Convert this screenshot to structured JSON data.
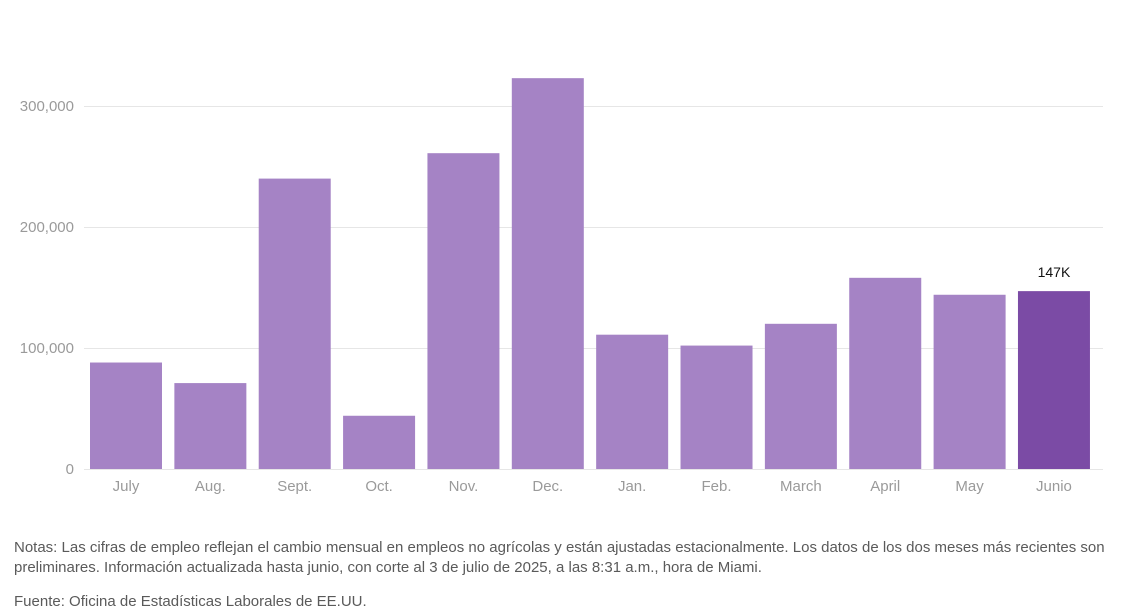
{
  "chart_data": {
    "type": "bar",
    "categories": [
      "July",
      "Aug.",
      "Sept.",
      "Oct.",
      "Nov.",
      "Dec.",
      "Jan.",
      "Feb.",
      "March",
      "April",
      "May",
      "Junio"
    ],
    "values": [
      88000,
      71000,
      240000,
      44000,
      261000,
      323000,
      111000,
      102000,
      120000,
      158000,
      144000,
      147000
    ],
    "yticks": [
      0,
      100000,
      200000,
      300000
    ],
    "ytick_labels": [
      "0",
      "100,000",
      "200,000",
      "300,000"
    ],
    "ylim": [
      0,
      330000
    ],
    "grid": true,
    "highlight_index": 11,
    "highlight_label": "147K",
    "colors": {
      "bar": "#a583c5",
      "highlight": "#7b4ba5",
      "grid": "#e6e6e6",
      "axis_text": "#9a9a9a"
    }
  },
  "notes": "Notas: Las cifras de empleo reflejan el cambio mensual en empleos no agrícolas y están ajustadas estacionalmente. Los datos de los dos meses más recientes son preliminares. Información actualizada hasta junio, con corte al 3 de julio de 2025, a las 8:31 a.m., hora de Miami.",
  "source": "Fuente: Oficina de Estadísticas Laborales de EE.UU."
}
